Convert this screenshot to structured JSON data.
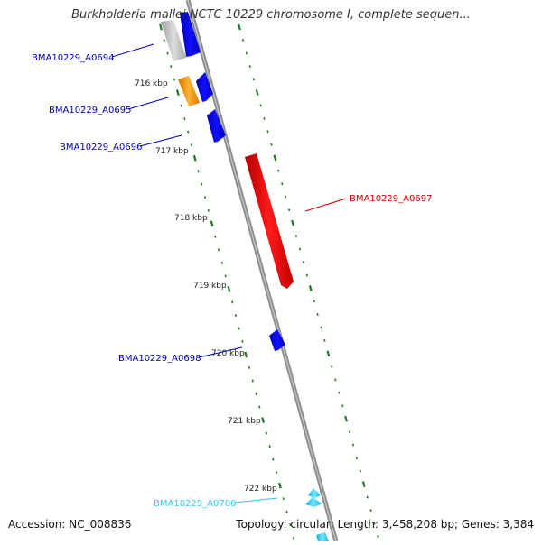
{
  "title": "Burkholderia mallei NCTC 10229 chromosome I, complete sequen...",
  "footer": {
    "accession": "Accession: NC_008836",
    "summary": "Topology: circular; Length: 3,458,208 bp; Genes: 3,384"
  },
  "colors": {
    "backbone": "#8c8c8c",
    "tick": "#1e7a1e",
    "tick_label": "#222222",
    "gene_blue": "#0000ee",
    "gene_orange": "#f59a10",
    "gene_red": "#ee0000",
    "gene_cyan": "#30d0ff",
    "gene_gray": "#b8b8b8"
  },
  "scale": {
    "ticks": [
      "716 kbp",
      "717 kbp",
      "718 kbp",
      "719 kbp",
      "720 kbp",
      "721 kbp",
      "722 kbp"
    ]
  },
  "genes": [
    {
      "id": "BMA10229_A0694",
      "color": "#0000ee"
    },
    {
      "id": "BMA10229_A0695",
      "color": "#0000ee"
    },
    {
      "id": "BMA10229_A0696",
      "color": "#0000ee"
    },
    {
      "id": "BMA10229_A0697",
      "color": "#ee0000"
    },
    {
      "id": "BMA10229_A0698",
      "color": "#0000ee"
    },
    {
      "id": "BMA10229_A0700",
      "color": "#30d0ff"
    }
  ]
}
